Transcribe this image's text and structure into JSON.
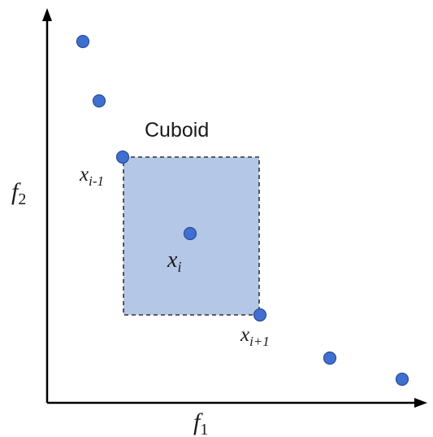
{
  "labels": {
    "cuboid": "Cuboid",
    "f1": "f",
    "f1_sub": "1",
    "f2": "f",
    "f2_sub": "2",
    "x_prev": "x",
    "x_prev_sub": "i-1",
    "x_i": "x",
    "x_i_sub": "i",
    "x_next": "x",
    "x_next_sub": "i+1"
  },
  "colors": {
    "point_fill": "#3f6fcf",
    "point_stroke": "#2a4f9e",
    "cuboid_fill": "#b4c7e7",
    "cuboid_border": "#333333",
    "axis": "#000000"
  }
}
